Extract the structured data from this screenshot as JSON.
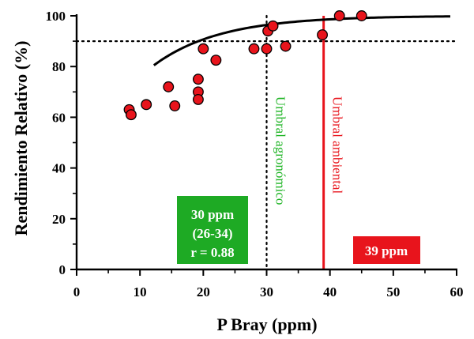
{
  "chart_data": {
    "type": "scatter",
    "xlabel": "P Bray (ppm)",
    "ylabel": "Rendimiento Relativo (%)",
    "xlim": [
      0,
      60
    ],
    "ylim": [
      0,
      100
    ],
    "x_ticks": [
      "0",
      "10",
      "20",
      "30",
      "40",
      "50",
      "60"
    ],
    "y_ticks": [
      "0",
      "20",
      "40",
      "60",
      "80",
      "100"
    ],
    "grid": false,
    "points": [
      {
        "x": 8.3,
        "y": 63
      },
      {
        "x": 8.6,
        "y": 61
      },
      {
        "x": 11,
        "y": 65
      },
      {
        "x": 14.5,
        "y": 72
      },
      {
        "x": 15.5,
        "y": 64.5
      },
      {
        "x": 19.2,
        "y": 75
      },
      {
        "x": 19.2,
        "y": 70
      },
      {
        "x": 19.2,
        "y": 67
      },
      {
        "x": 20,
        "y": 87
      },
      {
        "x": 22,
        "y": 82.5
      },
      {
        "x": 28,
        "y": 87
      },
      {
        "x": 30,
        "y": 87
      },
      {
        "x": 30.2,
        "y": 94
      },
      {
        "x": 31,
        "y": 96
      },
      {
        "x": 33,
        "y": 88
      },
      {
        "x": 38.8,
        "y": 92.5
      },
      {
        "x": 41.5,
        "y": 100
      },
      {
        "x": 45,
        "y": 100
      }
    ],
    "point_color": "#e8141c",
    "fit_curve": {
      "x_start": 12.2,
      "x_end": 59,
      "asymptote": 100,
      "rate": 0.095,
      "x0": 5,
      "color": "#000000"
    },
    "horizontal_reference": {
      "y": 90,
      "style": "dotted"
    },
    "thresholds": [
      {
        "x": 30,
        "label": "Umbral agronómico",
        "color": "#1eb424",
        "style": "dotted",
        "line_color": "#000000"
      },
      {
        "x": 39,
        "label": "Umbral ambiental",
        "color": "#e8141c",
        "style": "solid",
        "line_color": "#e8141c"
      }
    ],
    "annotations": [
      {
        "lines": [
          "30 ppm",
          "(26-34)",
          "r = 0.88"
        ],
        "bg": "#1eaa24"
      },
      {
        "lines": [
          "39 ppm"
        ],
        "bg": "#e8141c"
      }
    ]
  }
}
